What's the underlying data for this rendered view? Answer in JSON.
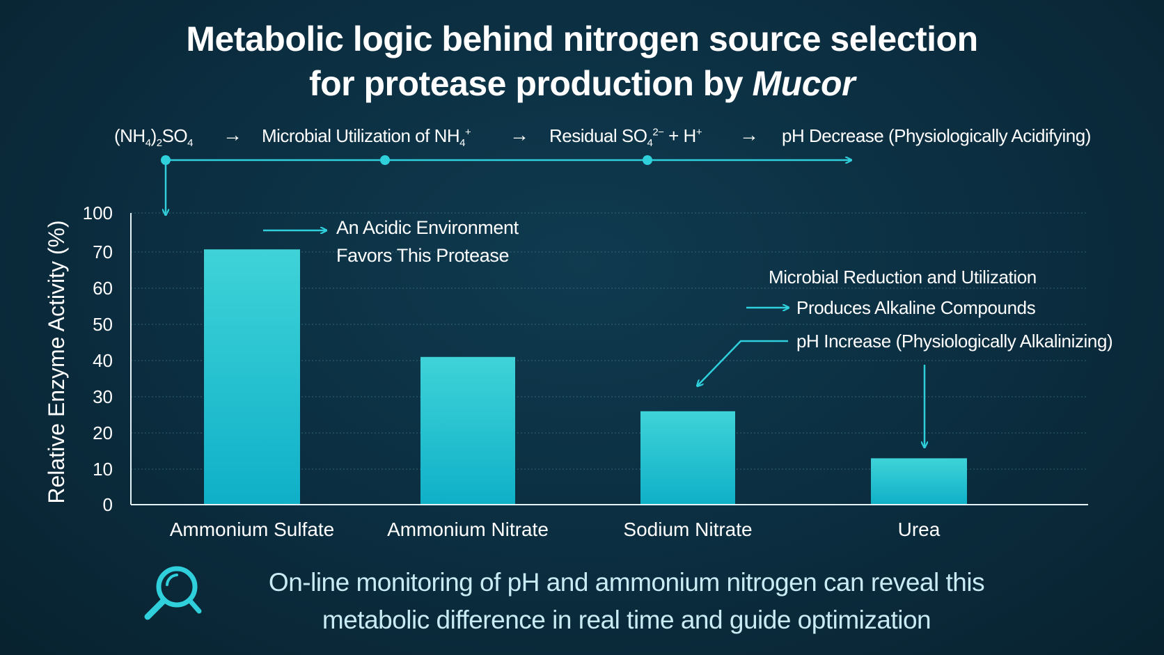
{
  "title": {
    "line1": "Metabolic logic behind nitrogen source selection",
    "line2_prefix": "for protease production by ",
    "line2_italic": "Mucor"
  },
  "pathway": {
    "step1": {
      "main": "(NH",
      "sub": "4",
      "rest": ")",
      "sub2": "2",
      "tail": "SO",
      "sub3": "4"
    },
    "step2": {
      "main": "Microbial Utilization of NH",
      "sub": "4",
      "sup": "+"
    },
    "step3": {
      "main": "Residual SO",
      "sub": "4",
      "sup": "2−",
      "rest": " + H",
      "sup2": "+"
    },
    "step4": "pH Decrease (Physiologically Acidifying)",
    "arrow": "→"
  },
  "annotations": {
    "acidic": [
      "An Acidic Environment",
      "Favors This Protease"
    ],
    "alkaline_line1": "Microbial Reduction and Utilization",
    "alkaline_line2": "Produces Alkaline Compounds",
    "alkaline_line3": "pH Increase (Physiologically Alkalinizing)"
  },
  "chart_data": {
    "type": "bar",
    "categories": [
      "Ammonium Sulfate",
      "Ammonium Nitrate",
      "Sodium Nitrate",
      "Urea"
    ],
    "values": [
      72,
      41,
      26,
      13
    ],
    "ylabel": "Relative Enzyme Activity (%)",
    "yticks": [
      0,
      10,
      20,
      30,
      40,
      50,
      60,
      70,
      100
    ],
    "ylim": [
      0,
      100
    ],
    "grid": true,
    "colors": {
      "bar_top": "#3fd3d8",
      "bar_bottom": "#0fb0c8",
      "accent": "#2fd0dc"
    }
  },
  "footer": {
    "line1": "On-line monitoring of pH and ammonium nitrogen can reveal this",
    "line2": "metabolic difference in real time and guide optimization",
    "icon": "magnifier-icon"
  }
}
